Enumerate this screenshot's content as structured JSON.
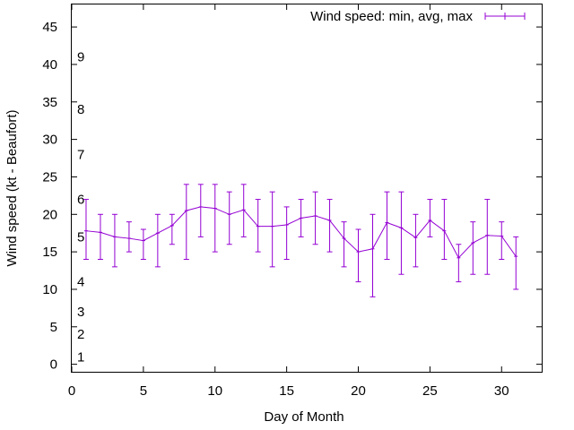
{
  "chart_data": {
    "type": "line",
    "title": "",
    "xlabel": "Day of Month",
    "ylabel": "Wind speed (kt - Beaufort)",
    "xlim": [
      0,
      32.8
    ],
    "ylim": [
      -1,
      48
    ],
    "xticks": [
      0,
      5,
      10,
      15,
      20,
      25,
      30
    ],
    "yticks": [
      0,
      5,
      10,
      15,
      20,
      25,
      30,
      35,
      40,
      45
    ],
    "grid": false,
    "legend_position": "top-right",
    "series": [
      {
        "name": "Wind speed: min, avg, max",
        "color": "#9400d3",
        "x": [
          1,
          2,
          3,
          4,
          5,
          6,
          7,
          8,
          9,
          10,
          11,
          12,
          13,
          14,
          15,
          16,
          17,
          18,
          19,
          20,
          21,
          22,
          23,
          24,
          25,
          26,
          27,
          28,
          29,
          30,
          31
        ],
        "avg": [
          17.8,
          17.6,
          17.0,
          16.8,
          16.5,
          17.5,
          18.5,
          20.5,
          21.0,
          20.8,
          20.0,
          20.6,
          18.4,
          18.4,
          18.6,
          19.5,
          19.8,
          19.2,
          16.8,
          15.0,
          15.4,
          18.9,
          18.2,
          16.9,
          19.2,
          17.8,
          14.2,
          16.2,
          17.2,
          17.1,
          14.4
        ],
        "min": [
          14,
          14,
          13,
          15,
          14,
          13,
          16,
          14,
          17,
          15,
          16,
          17,
          15,
          13,
          14,
          17,
          16,
          15,
          13,
          11,
          9,
          14,
          12,
          13,
          17,
          14,
          11,
          12,
          12,
          14,
          10
        ],
        "max": [
          22,
          20,
          20,
          19,
          18,
          20,
          20,
          24,
          24,
          24,
          23,
          24,
          22,
          23,
          21,
          22,
          23,
          22,
          19,
          18,
          20,
          23,
          23,
          20,
          22,
          22,
          16,
          19,
          22,
          19,
          17
        ]
      }
    ],
    "annotations": [
      {
        "text": "1",
        "y": 1
      },
      {
        "text": "2",
        "y": 4
      },
      {
        "text": "3",
        "y": 7
      },
      {
        "text": "4",
        "y": 11
      },
      {
        "text": "5",
        "y": 17
      },
      {
        "text": "6",
        "y": 22
      },
      {
        "text": "7",
        "y": 28
      },
      {
        "text": "8",
        "y": 34
      },
      {
        "text": "9",
        "y": 41
      }
    ]
  }
}
